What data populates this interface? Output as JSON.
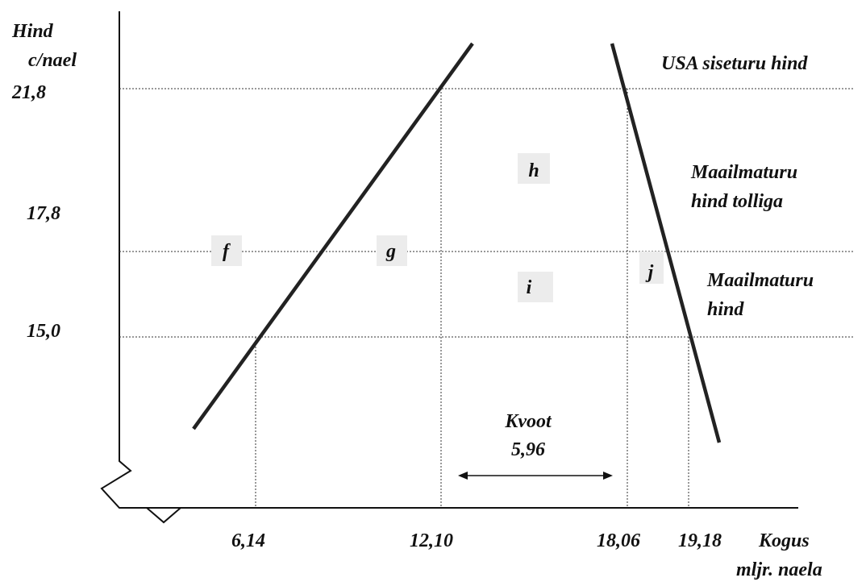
{
  "y_axis": {
    "label_line1": "Hind",
    "label_line2": "c/nael",
    "ticks": [
      "21,8",
      "17,8",
      "15,0"
    ]
  },
  "x_axis": {
    "label_line1": "Kogus",
    "label_line2": "mljr. naela",
    "ticks": [
      "6,14",
      "12,10",
      "18,06",
      "19,18"
    ]
  },
  "price_lines": {
    "usa": "USA siseturu hind",
    "world_tariff_line1": "Maailmaturu",
    "world_tariff_line2": "hind tolliga",
    "world_line1": "Maailmaturu",
    "world_line2": "hind"
  },
  "areas": {
    "f": "f",
    "g": "g",
    "h": "h",
    "i": "i",
    "j": "j"
  },
  "quota": {
    "label": "Kvoot",
    "value": "5,96"
  }
}
